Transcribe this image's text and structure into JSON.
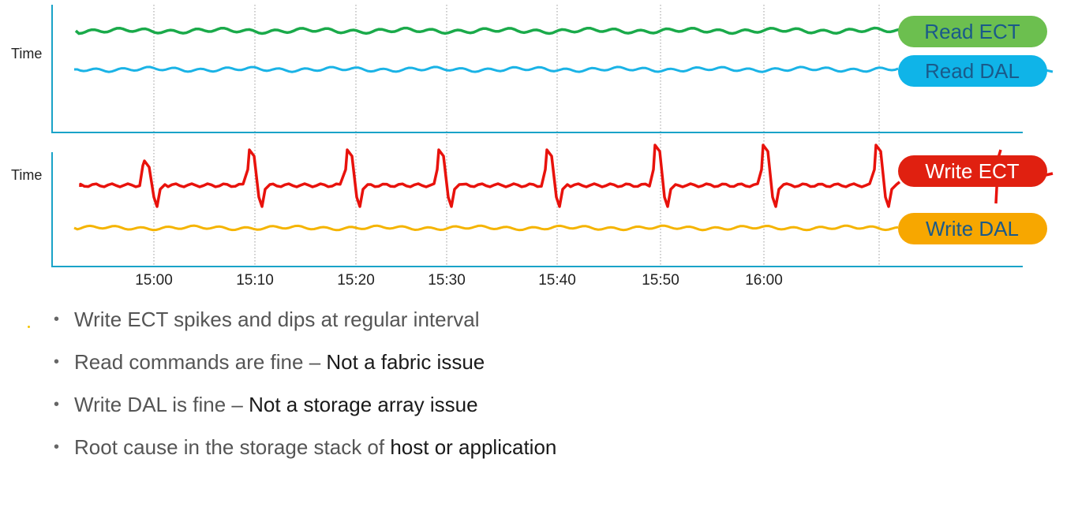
{
  "chart_data": [
    {
      "type": "line",
      "ylabel": "Time",
      "x": [
        "15:00",
        "15:10",
        "15:20",
        "15:30",
        "15:40",
        "15:50",
        "16:00"
      ],
      "series": [
        {
          "name": "Read ECT",
          "color": "#1aaa4a",
          "pillColor": "#6cbf4f"
        },
        {
          "name": "Read DAL",
          "color": "#1ab3e6",
          "pillColor": "#0fb4e8"
        }
      ]
    },
    {
      "type": "line",
      "ylabel": "Time",
      "x": [
        "15:00",
        "15:10",
        "15:20",
        "15:30",
        "15:40",
        "15:50",
        "16:00"
      ],
      "series": [
        {
          "name": "Write ECT",
          "color": "#e8120c",
          "pillColor": "#e02010"
        },
        {
          "name": "Write DAL",
          "color": "#f5b400",
          "pillColor": "#f7a700"
        }
      ]
    }
  ],
  "bullets": [
    {
      "text": "Write ECT spikes and dips at regular interval",
      "bold": ""
    },
    {
      "text": "Read commands are fine – ",
      "bold": "Not a fabric issue"
    },
    {
      "text": "Write DAL is fine – ",
      "bold": "Not a storage array issue"
    },
    {
      "text": "Root cause in the storage stack of ",
      "bold": "host or application"
    }
  ],
  "colors": {
    "axis": "#1aa3c8",
    "grid": "#999999",
    "pillText": "#ffffff",
    "blueText": "#1a5a8a"
  }
}
